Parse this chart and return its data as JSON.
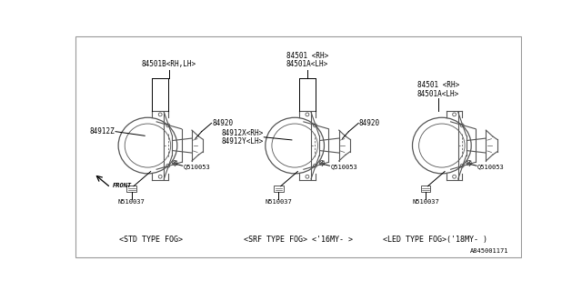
{
  "bg_color": "#ffffff",
  "lc": "#000000",
  "dc": "#555555",
  "labels": {
    "std_top1": "84501B<RH,LH>",
    "std_84920": "84920",
    "std_84912z": "84912Z",
    "std_q": "Q510053",
    "std_n": "N510037",
    "std_cap": "<STD TYPE FOG>",
    "srf_top1": "84501 <RH>",
    "srf_top2": "84501A<LH>",
    "srf_84920": "84920",
    "srf_84912x": "84912X<RH>",
    "srf_84912y": "84912Y<LH>",
    "srf_q": "Q510053",
    "srf_n": "N510037",
    "srf_cap": "<SRF TYPE FOG> <'16MY- >",
    "led_top1": "84501 <RH>",
    "led_top2": "84501A<LH>",
    "led_q": "Q510053",
    "led_n": "N510037",
    "led_cap": "<LED TYPE FOG>('18MY- )",
    "front": "FRONT",
    "partno": "A845001171"
  },
  "fs": 5.5,
  "fs_sm": 5.0,
  "fs_cap": 6.0
}
